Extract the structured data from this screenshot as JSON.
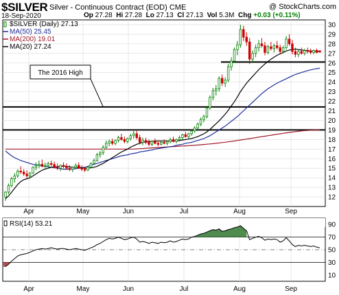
{
  "header": {
    "symbol": "$SILVER",
    "description": "Silver - Continuous Contract (EOD)",
    "exchange": "CME",
    "site": "@ StockCharts.com",
    "date": "18-Sep-2020",
    "open_label": "Op",
    "open": "27.28",
    "high_label": "Hi",
    "high": "27.28",
    "low_label": "Lo",
    "low": "27.13",
    "close_label": "Cl",
    "close": "27.13",
    "vol_label": "Vol",
    "vol": "5.3M",
    "chg_label": "Chg",
    "chg": "+0.03 (+0.11%)"
  },
  "legend": {
    "price": "$SILVER (Daily) 27.13",
    "ma50": "MA(50) 25.45",
    "ma200": "MA(200) 19.01",
    "ma20": "MA(20) 27.24"
  },
  "annotation": "The 2016 High",
  "rsi_label": "RSI(14) 53.21",
  "colors": {
    "up": "#008000",
    "down": "#cc0000",
    "ma50": "#1f2f9a",
    "ma200": "#a01828",
    "ma20": "#000000",
    "rsi_fill": "#4f8a4f"
  },
  "chart_data": [
    {
      "type": "candlestick",
      "title": "$SILVER (Daily)",
      "x_labels": [
        "Apr",
        "May",
        "Jun",
        "Jul",
        "Aug",
        "Sep"
      ],
      "ylim": [
        11,
        30.5
      ],
      "yticks": [
        12,
        13,
        14,
        15,
        16,
        17,
        18,
        19,
        20,
        21,
        22,
        23,
        24,
        25,
        26,
        27,
        28,
        29,
        30
      ],
      "horizontal_lines": [
        21.4,
        19.0,
        26.1
      ],
      "candles": [
        [
          12.0,
          12.6,
          11.6,
          12.5
        ],
        [
          12.5,
          13.4,
          12.3,
          13.2
        ],
        [
          13.2,
          14.1,
          13.0,
          13.9
        ],
        [
          13.9,
          14.5,
          13.5,
          14.2
        ],
        [
          14.2,
          14.9,
          14.0,
          14.7
        ],
        [
          14.7,
          15.2,
          14.4,
          14.6
        ],
        [
          14.6,
          14.9,
          14.2,
          14.4
        ],
        [
          14.4,
          14.8,
          14.0,
          14.2
        ],
        [
          14.2,
          14.6,
          13.9,
          14.5
        ],
        [
          14.5,
          15.2,
          14.4,
          15.1
        ],
        [
          15.1,
          15.6,
          14.8,
          15.3
        ],
        [
          15.3,
          15.8,
          15.0,
          15.4
        ],
        [
          15.4,
          15.9,
          15.1,
          15.2
        ],
        [
          15.2,
          15.6,
          14.9,
          15.3
        ],
        [
          15.3,
          15.7,
          15.0,
          15.5
        ],
        [
          15.5,
          15.8,
          15.2,
          15.4
        ],
        [
          15.4,
          15.7,
          15.0,
          15.1
        ],
        [
          15.1,
          15.5,
          14.8,
          15.0
        ],
        [
          15.0,
          15.4,
          14.7,
          15.3
        ],
        [
          15.3,
          15.6,
          15.0,
          15.2
        ],
        [
          15.2,
          15.5,
          14.9,
          15.0
        ],
        [
          15.0,
          15.3,
          14.7,
          14.9
        ],
        [
          14.9,
          15.2,
          14.6,
          15.1
        ],
        [
          15.1,
          15.5,
          14.9,
          15.3
        ],
        [
          15.3,
          15.6,
          14.9,
          15.0
        ],
        [
          15.0,
          15.3,
          14.7,
          14.9
        ],
        [
          14.9,
          15.1,
          14.6,
          14.8
        ],
        [
          14.8,
          15.2,
          14.7,
          15.1
        ],
        [
          15.1,
          15.6,
          15.0,
          15.5
        ],
        [
          15.5,
          16.0,
          15.4,
          15.8
        ],
        [
          15.8,
          16.6,
          15.7,
          16.4
        ],
        [
          16.4,
          16.8,
          16.1,
          16.6
        ],
        [
          16.6,
          17.4,
          16.4,
          17.2
        ],
        [
          17.2,
          17.9,
          17.0,
          17.6
        ],
        [
          17.6,
          18.0,
          17.3,
          17.8
        ],
        [
          17.8,
          18.1,
          17.4,
          17.6
        ],
        [
          17.6,
          18.0,
          17.4,
          17.9
        ],
        [
          17.9,
          18.4,
          17.7,
          18.2
        ],
        [
          18.2,
          18.6,
          17.9,
          18.0
        ],
        [
          18.0,
          18.3,
          17.6,
          17.8
        ],
        [
          17.8,
          18.2,
          17.6,
          18.1
        ],
        [
          18.1,
          18.6,
          17.9,
          18.4
        ],
        [
          18.4,
          18.9,
          18.1,
          18.6
        ],
        [
          18.6,
          18.9,
          18.0,
          18.2
        ],
        [
          18.2,
          18.5,
          17.5,
          17.7
        ],
        [
          17.7,
          18.2,
          17.4,
          17.9
        ],
        [
          17.9,
          18.2,
          17.5,
          17.7
        ],
        [
          17.7,
          18.0,
          17.3,
          17.5
        ],
        [
          17.5,
          17.9,
          17.3,
          17.8
        ],
        [
          17.8,
          18.1,
          17.5,
          17.6
        ],
        [
          17.6,
          17.9,
          17.3,
          17.5
        ],
        [
          17.5,
          17.9,
          17.4,
          17.7
        ],
        [
          17.7,
          18.0,
          17.5,
          17.6
        ],
        [
          17.6,
          17.9,
          17.4,
          17.8
        ],
        [
          17.8,
          18.2,
          17.6,
          18.0
        ],
        [
          18.0,
          18.3,
          17.7,
          17.8
        ],
        [
          17.8,
          18.1,
          17.6,
          18.0
        ],
        [
          18.0,
          18.4,
          17.8,
          18.2
        ],
        [
          18.2,
          18.6,
          18.0,
          18.5
        ],
        [
          18.5,
          18.8,
          18.2,
          18.3
        ],
        [
          18.3,
          18.7,
          18.1,
          18.6
        ],
        [
          18.6,
          19.1,
          18.4,
          18.9
        ],
        [
          18.9,
          19.4,
          18.7,
          19.2
        ],
        [
          19.2,
          19.8,
          19.0,
          19.6
        ],
        [
          19.6,
          20.3,
          19.4,
          20.1
        ],
        [
          20.1,
          20.6,
          19.8,
          20.4
        ],
        [
          20.4,
          21.5,
          20.2,
          21.3
        ],
        [
          21.3,
          22.6,
          21.1,
          22.4
        ],
        [
          22.4,
          23.4,
          22.1,
          23.1
        ],
        [
          23.1,
          23.7,
          22.6,
          23.3
        ],
        [
          23.3,
          24.6,
          23.0,
          24.4
        ],
        [
          24.4,
          24.8,
          23.6,
          23.9
        ],
        [
          23.9,
          24.5,
          23.5,
          24.2
        ],
        [
          24.2,
          25.9,
          24.0,
          25.6
        ],
        [
          25.6,
          26.6,
          25.2,
          26.2
        ],
        [
          26.2,
          27.6,
          26.0,
          27.4
        ],
        [
          27.4,
          28.3,
          26.8,
          27.9
        ],
        [
          27.9,
          30.0,
          27.6,
          29.5
        ],
        [
          29.5,
          29.9,
          28.3,
          28.7
        ],
        [
          28.7,
          29.2,
          27.8,
          28.2
        ],
        [
          28.2,
          28.6,
          25.9,
          26.4
        ],
        [
          26.4,
          27.3,
          26.0,
          27.0
        ],
        [
          27.0,
          27.9,
          26.6,
          27.6
        ],
        [
          27.6,
          28.4,
          27.2,
          28.0
        ],
        [
          28.0,
          28.6,
          27.6,
          27.8
        ],
        [
          27.8,
          28.2,
          26.8,
          27.1
        ],
        [
          27.1,
          27.9,
          26.9,
          27.7
        ],
        [
          27.7,
          28.2,
          27.3,
          27.5
        ],
        [
          27.5,
          28.0,
          27.1,
          27.8
        ],
        [
          27.8,
          28.3,
          27.4,
          27.6
        ],
        [
          27.6,
          27.9,
          26.9,
          27.2
        ],
        [
          27.2,
          27.8,
          27.0,
          27.6
        ],
        [
          27.6,
          28.8,
          27.4,
          28.5
        ],
        [
          28.5,
          29.0,
          27.8,
          28.0
        ],
        [
          28.0,
          28.4,
          26.9,
          27.2
        ],
        [
          27.2,
          27.6,
          26.6,
          26.9
        ],
        [
          26.9,
          27.4,
          26.6,
          27.2
        ],
        [
          27.2,
          27.6,
          26.9,
          27.0
        ],
        [
          27.0,
          27.5,
          26.8,
          27.3
        ],
        [
          27.3,
          27.6,
          27.0,
          27.2
        ],
        [
          27.2,
          27.5,
          26.9,
          27.1
        ],
        [
          27.1,
          27.4,
          26.9,
          27.3
        ],
        [
          27.3,
          27.5,
          27.0,
          27.1
        ],
        [
          27.28,
          27.28,
          27.13,
          27.13
        ]
      ],
      "ma20": [
        11.8,
        12.1,
        12.5,
        12.9,
        13.3,
        13.6,
        13.8,
        13.9,
        14.0,
        14.2,
        14.4,
        14.6,
        14.8,
        14.9,
        15.0,
        15.1,
        15.15,
        15.15,
        15.2,
        15.2,
        15.2,
        15.15,
        15.1,
        15.1,
        15.1,
        15.05,
        15.0,
        15.0,
        15.05,
        15.1,
        15.2,
        15.35,
        15.5,
        15.7,
        15.9,
        16.1,
        16.3,
        16.5,
        16.7,
        16.85,
        17.0,
        17.2,
        17.35,
        17.5,
        17.6,
        17.7,
        17.75,
        17.8,
        17.8,
        17.85,
        17.85,
        17.85,
        17.85,
        17.85,
        17.85,
        17.85,
        17.85,
        17.9,
        17.95,
        18.0,
        18.05,
        18.1,
        18.2,
        18.3,
        18.45,
        18.6,
        18.8,
        19.05,
        19.35,
        19.65,
        19.95,
        20.3,
        20.65,
        21.05,
        21.5,
        21.95,
        22.45,
        23.0,
        23.45,
        23.9,
        24.25,
        24.6,
        24.95,
        25.3,
        25.6,
        25.9,
        26.15,
        26.4,
        26.6,
        26.8,
        26.95,
        27.1,
        27.25,
        27.35,
        27.4,
        27.45,
        27.4,
        27.35,
        27.3,
        27.3,
        27.25,
        27.25,
        27.24,
        27.24
      ],
      "ma50": [
        16.8,
        16.55,
        16.3,
        16.1,
        15.95,
        15.8,
        15.7,
        15.6,
        15.5,
        15.4,
        15.35,
        15.3,
        15.25,
        15.2,
        15.15,
        15.1,
        15.05,
        15.0,
        14.95,
        14.9,
        14.9,
        14.9,
        14.9,
        14.95,
        15.0,
        15.05,
        15.1,
        15.2,
        15.3,
        15.4,
        15.5,
        15.6,
        15.7,
        15.8,
        15.9,
        16.0,
        16.1,
        16.2,
        16.3,
        16.35,
        16.4,
        16.5,
        16.55,
        16.6,
        16.7,
        16.75,
        16.8,
        16.85,
        16.9,
        17.0,
        17.05,
        17.1,
        17.15,
        17.2,
        17.25,
        17.3,
        17.4,
        17.45,
        17.5,
        17.6,
        17.65,
        17.7,
        17.8,
        17.9,
        18.0,
        18.1,
        18.25,
        18.4,
        18.6,
        18.8,
        19.0,
        19.2,
        19.4,
        19.65,
        19.9,
        20.15,
        20.4,
        20.7,
        21.0,
        21.3,
        21.6,
        21.9,
        22.2,
        22.5,
        22.8,
        23.05,
        23.3,
        23.5,
        23.7,
        23.9,
        24.05,
        24.2,
        24.35,
        24.5,
        24.65,
        24.8,
        24.9,
        25.0,
        25.1,
        25.2,
        25.28,
        25.35,
        25.4,
        25.45
      ],
      "ma200": [
        17.0,
        17.0,
        17.0,
        17.0,
        17.0,
        17.0,
        17.0,
        17.0,
        17.0,
        17.0,
        17.0,
        17.0,
        17.0,
        17.0,
        17.0,
        17.0,
        17.0,
        17.0,
        17.0,
        17.0,
        17.0,
        17.0,
        17.0,
        17.0,
        17.0,
        17.0,
        17.0,
        17.0,
        17.0,
        17.0,
        17.0,
        17.0,
        17.0,
        17.0,
        17.0,
        17.0,
        17.0,
        17.0,
        17.0,
        17.0,
        17.0,
        17.0,
        17.0,
        17.02,
        17.04,
        17.06,
        17.08,
        17.1,
        17.12,
        17.14,
        17.16,
        17.18,
        17.2,
        17.22,
        17.24,
        17.26,
        17.28,
        17.3,
        17.32,
        17.34,
        17.36,
        17.38,
        17.4,
        17.42,
        17.45,
        17.48,
        17.51,
        17.54,
        17.57,
        17.6,
        17.64,
        17.68,
        17.72,
        17.76,
        17.8,
        17.85,
        17.9,
        17.95,
        18.0,
        18.05,
        18.1,
        18.15,
        18.2,
        18.25,
        18.3,
        18.35,
        18.4,
        18.45,
        18.5,
        18.55,
        18.6,
        18.65,
        18.7,
        18.74,
        18.78,
        18.82,
        18.86,
        18.9,
        18.93,
        18.95,
        18.97,
        18.99,
        19.0,
        19.01
      ]
    },
    {
      "type": "line",
      "title": "RSI(14)",
      "ylim": [
        0,
        100
      ],
      "yticks": [
        10,
        30,
        50,
        70,
        90
      ],
      "reference_lines": [
        70,
        50,
        30
      ],
      "x_labels": [
        "Apr",
        "May",
        "Jun",
        "Jul",
        "Aug",
        "Sep"
      ],
      "values": [
        23,
        27,
        32,
        36,
        40,
        42,
        43,
        44,
        46,
        48,
        50,
        51,
        52,
        51,
        52,
        53,
        52,
        51,
        52,
        52,
        51,
        50,
        51,
        52,
        51,
        50,
        49,
        51,
        53,
        55,
        58,
        60,
        63,
        66,
        68,
        67,
        68,
        70,
        68,
        66,
        67,
        69,
        70,
        67,
        62,
        63,
        62,
        60,
        62,
        61,
        60,
        62,
        61,
        62,
        64,
        62,
        63,
        65,
        67,
        66,
        67,
        70,
        71,
        73,
        75,
        76,
        78,
        80,
        82,
        81,
        83,
        79,
        80,
        82,
        83,
        85,
        86,
        88,
        84,
        80,
        66,
        68,
        70,
        71,
        69,
        65,
        67,
        66,
        67,
        66,
        62,
        64,
        69,
        64,
        58,
        55,
        57,
        56,
        57,
        56,
        55,
        56,
        54,
        53
      ]
    }
  ]
}
